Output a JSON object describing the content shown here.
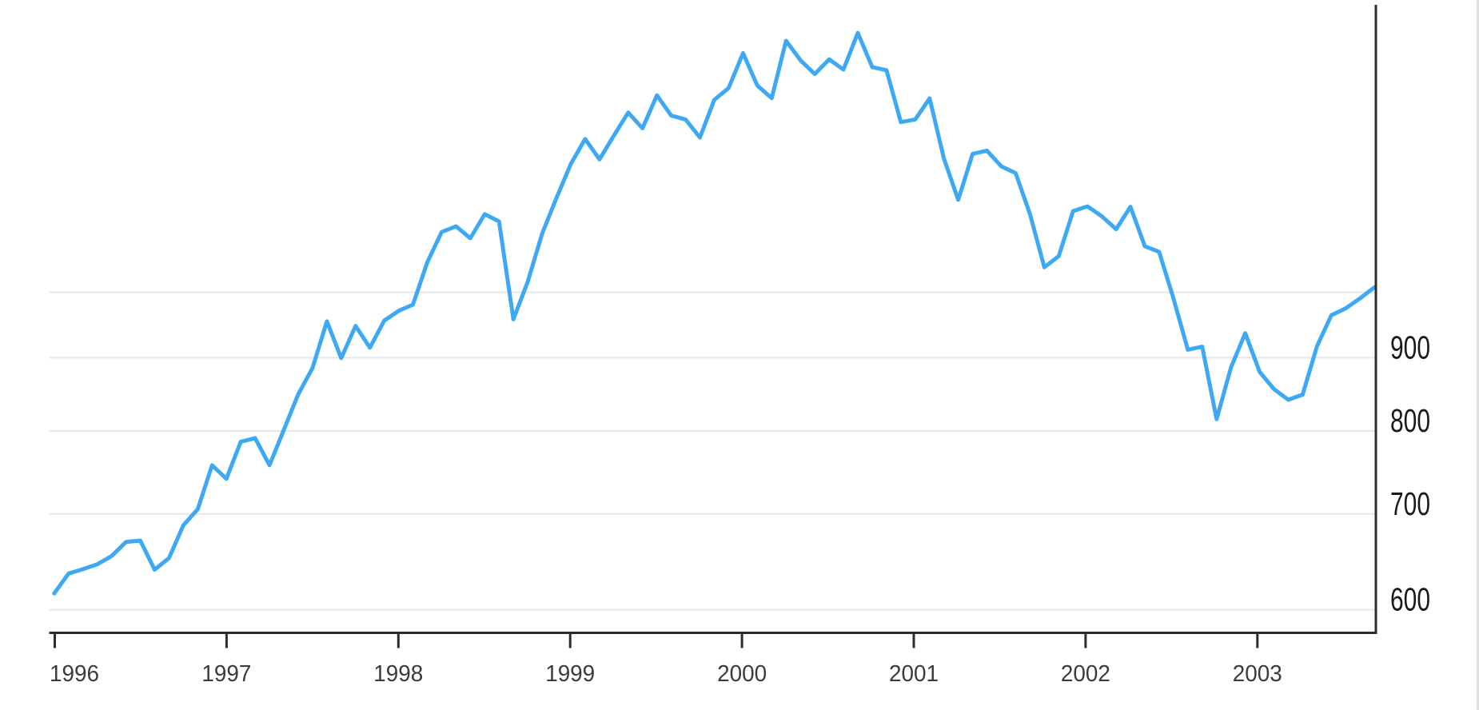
{
  "chart_data": {
    "type": "line",
    "title": "",
    "legend_position": "none",
    "grid": "horizontal-only",
    "x_axis": {
      "tick_labels": [
        "1996",
        "1997",
        "1998",
        "1999",
        "2000",
        "2001",
        "2002",
        "2003"
      ],
      "start": "1995-12",
      "end": "2003-08"
    },
    "y_axis": {
      "scale": "log",
      "side": "right",
      "tick_labels": [
        "900",
        "800",
        "700",
        "600"
      ],
      "gridline_values": [
        1000,
        900,
        800,
        700,
        600
      ],
      "labeled_values": [
        900,
        800,
        700,
        600
      ]
    },
    "series": [
      {
        "name": "monthly-close-line",
        "color": "#3da9f5",
        "start": "1995-12",
        "frequency": "monthly",
        "values": [
          615.93,
          636.02,
          640.43,
          645.5,
          654.17,
          669.12,
          670.63,
          639.95,
          651.99,
          687.31,
          705.27,
          757.02,
          740.74,
          786.16,
          790.82,
          757.12,
          801.34,
          848.28,
          885.14,
          954.29,
          899.47,
          947.28,
          914.62,
          955.4,
          970.43,
          980.28,
          1049.34,
          1101.75,
          1111.75,
          1090.82,
          1133.84,
          1120.67,
          957.28,
          1017.01,
          1098.67,
          1163.63,
          1229.23,
          1279.64,
          1238.33,
          1286.37,
          1335.18,
          1301.84,
          1372.71,
          1328.72,
          1320.41,
          1282.71,
          1362.93,
          1388.91,
          1469.25,
          1394.46,
          1366.42,
          1498.58,
          1452.43,
          1420.6,
          1454.6,
          1430.83,
          1517.68,
          1436.51,
          1429.4,
          1314.95,
          1320.28,
          1366.01,
          1239.94,
          1160.33,
          1249.46,
          1255.82,
          1224.38,
          1211.23,
          1133.58,
          1040.94,
          1059.78,
          1139.45,
          1148.08,
          1130.2,
          1106.73,
          1147.39,
          1076.92,
          1067.14,
          989.82,
          911.62,
          916.07,
          815.28,
          885.76,
          936.31,
          879.82,
          855.7,
          841.15,
          848.18,
          916.92,
          963.59,
          974.5,
          990.31,
          1008.01
        ]
      }
    ]
  },
  "colors": {
    "line": "#3da9f5",
    "gridline": "#e6e6e6",
    "axis": "#2d2d2d",
    "x_label": "#3b3b3b",
    "y_label": "#1a1a1a",
    "right_edge_line": "#dcdcdc",
    "background": "#ffffff"
  }
}
